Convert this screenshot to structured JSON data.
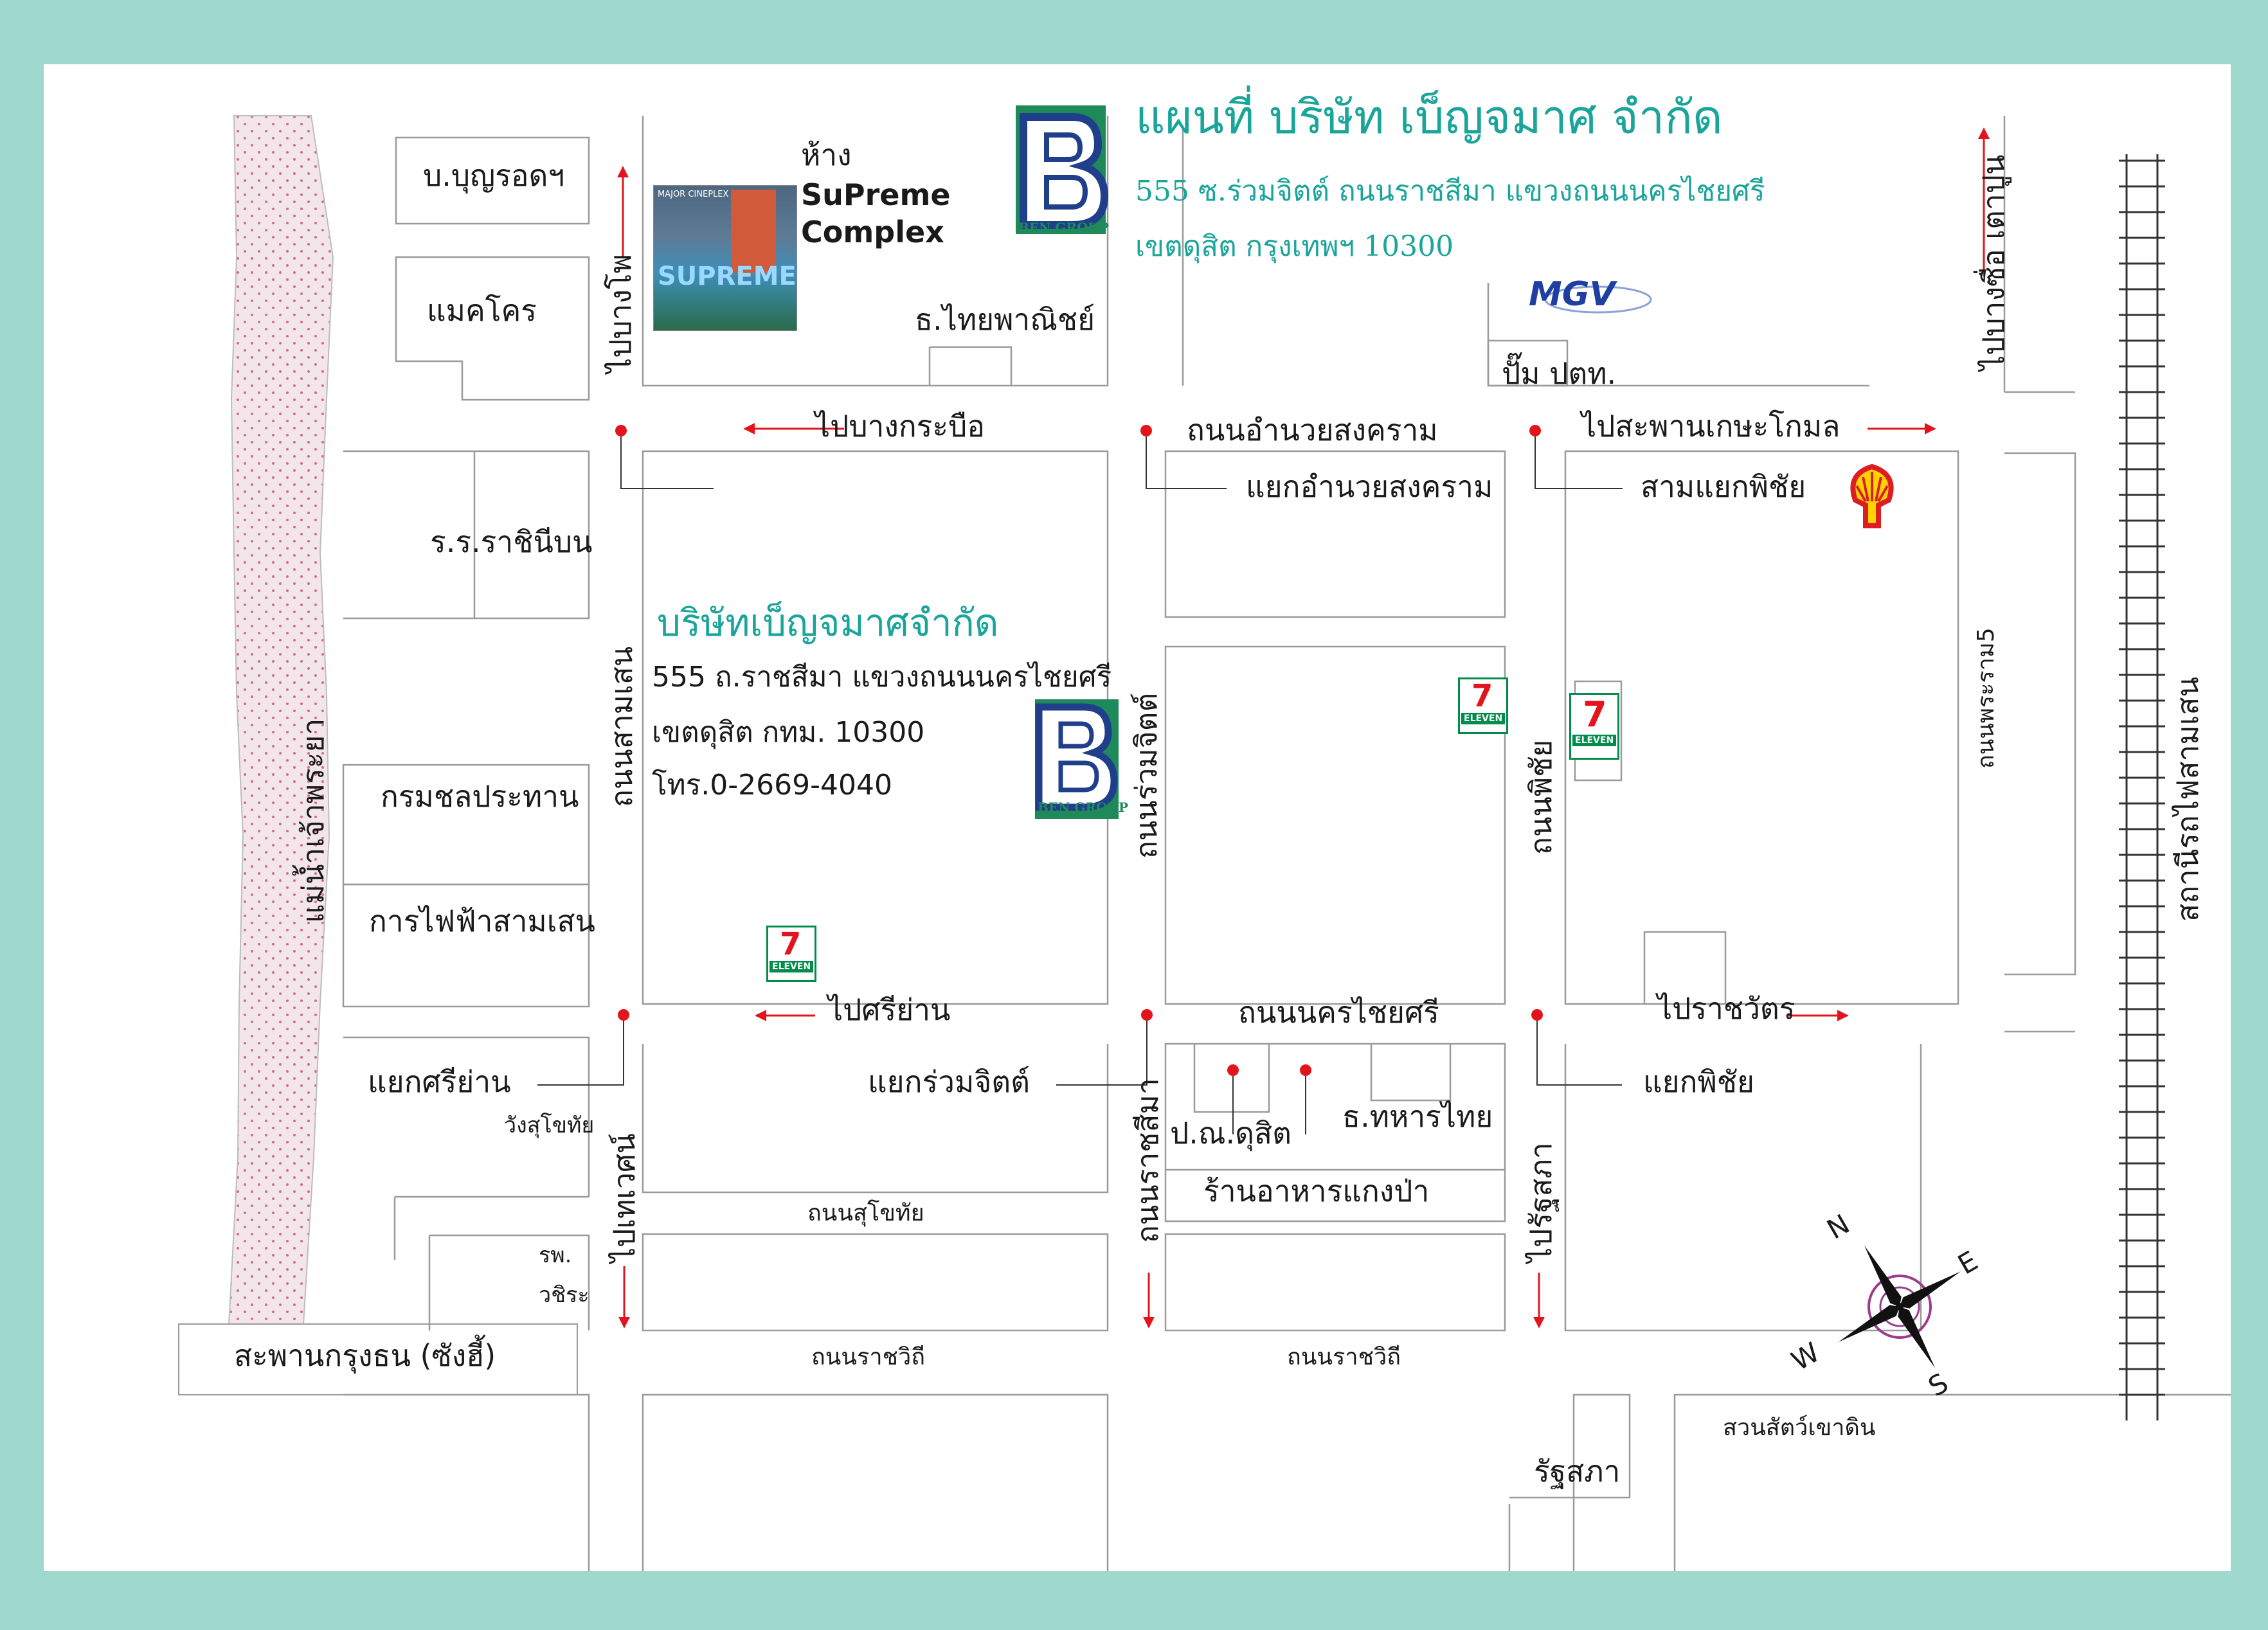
{
  "title": {
    "main": "แผนที่ บริษัท เบ็ญจมาศ จำกัด",
    "address_line1": "555 ซ.ร่วมจิตต์ ถนนราชสีมา แขวงถนนนครไชยศรี",
    "address_line2": "เขตดุสิต กรุงเทพฯ 10300"
  },
  "logo": {
    "letter": "B",
    "caption": "BEN GROUP"
  },
  "headquarters": {
    "name": "บริษัทเบ็ญจมาศจำกัด",
    "line1": "555 ถ.ราชสีมา แขวงถนนนครไชยศรี",
    "line2": "เขตดุสิต กทม. 10300",
    "phone": "โทร.0-2669-4040"
  },
  "mall": {
    "prefix": "ห้าง",
    "name_line1": "SuPreme",
    "name_line2": "Complex",
    "photo_top": "MAJOR CINEPLEX",
    "photo_sign": "SUPREME"
  },
  "brands": {
    "seven_eleven": "ELEVEN",
    "seven": "7",
    "mgv": "MGV"
  },
  "compass": {
    "n": "N",
    "e": "E",
    "s": "S",
    "w": "W"
  },
  "labels": {
    "boonrod": "บ.บุญรอดฯ",
    "makro": "แมคโคร",
    "thai_panich": "ธ.ไทยพาณิชย์",
    "ptt": "ปั๊ม ปตท.",
    "to_bang_krabue": "ไปบางกระบือ",
    "amnuay_road": "ถนนอำนวยสงคราม",
    "to_kasem_bridge": "ไปสะพานเกษะโกมล",
    "amnuay_junction": "แยกอำนวยสงคราม",
    "pichai_3way": "สามแยกพิชัย",
    "rachini": "ร.ร.ราชินีบน",
    "chonprathan": "กรมชลประทาน",
    "electricity": "การไฟฟ้าสามเสน",
    "to_si_yan": "ไปศรีย่าน",
    "nakhon_chaisi_road": "ถนนนครไชยศรี",
    "to_ratchawat": "ไปราชวัตร",
    "si_yan_junction": "แยกศรีย่าน",
    "wang_sukhothai": "วังสุโขทัย",
    "ruamjit_junction": "แยกร่วมจิตต์",
    "post_office": "ป.ณ.ดุสิต",
    "military_bank": "ธ.ทหารไทย",
    "pichai_junction": "แยกพิชัย",
    "kaeng_pa": "ร้านอาหารแกงป่า",
    "sukhothai_road": "ถนนสุโขทัย",
    "hospital1": "รพ.",
    "hospital2": "วชิระ",
    "krung_thon_bridge": "สะพานกรุงธน (ซังฮี้)",
    "ratchawithi1": "ถนนราชวิถี",
    "ratchawithi2": "ถนนราชวิถี",
    "zoo": "สวนสัตว์เขาดิน",
    "parliament": "รัฐสภา",
    "to_bang_pho": "ไปบางโพ",
    "samsen_road": "ถนนสามเสน",
    "to_thewet": "ไปเทเวศน์",
    "ruamjit_road": "ถนนร่วมจิตต์",
    "ratchasima_road": "ถนนราชสีมา",
    "pichai_road": "ถนนพิชัย",
    "to_parliament": "ไปรัฐสภา",
    "rama5_road": "ถนนพระราม5",
    "to_bang_sue": "ไปบางซื่อ เตาปูน",
    "river": "แม่น้ำเจ้าพระยา",
    "train_station": "สถานีรถไฟสามเสน"
  },
  "colors": {
    "frame": "#9fd8cd",
    "title_teal": "#1aa59a",
    "logo_green": "#1e8a5a",
    "logo_blue": "#1f3f8a",
    "river_fill": "#f3e6ea",
    "river_dot": "#d66a8c",
    "arrow_red": "#e3141b",
    "seven_green": "#008c4a",
    "seven_orange": "#f36f21",
    "seven_red": "#e3141b",
    "shell_yellow": "#ffd200",
    "shell_red": "#dd1d21",
    "mgv_blue": "#1f3fa0"
  }
}
